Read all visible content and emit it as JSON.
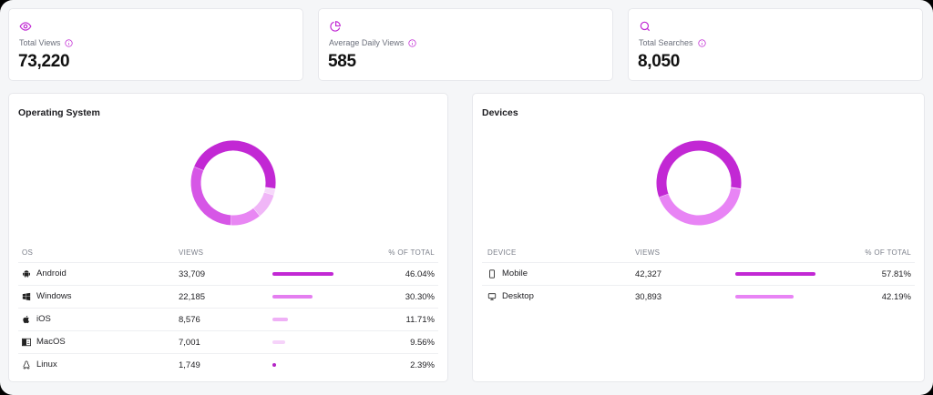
{
  "colors": {
    "accent": "#c026d3",
    "shade1": "#c228d4",
    "shade2": "#e47ef0",
    "shade3": "#efb0f6",
    "shade4": "#f6d3fa",
    "linux": "#b424c6",
    "desktop": "#e884f5"
  },
  "stats": [
    {
      "icon": "eye-icon",
      "label": "Total Views",
      "value": "73,220"
    },
    {
      "icon": "pie-chart-icon",
      "label": "Average Daily Views",
      "value": "585"
    },
    {
      "icon": "search-icon",
      "label": "Total Searches",
      "value": "8,050"
    }
  ],
  "os_panel": {
    "title": "Operating System",
    "headers": {
      "name": "OS",
      "views": "VIEWS",
      "pct": "% OF TOTAL"
    },
    "rows": [
      {
        "icon": "android-icon",
        "name": "Android",
        "views": "33,709",
        "pct": "46.04%",
        "share": 46.04,
        "color": "#c228d4"
      },
      {
        "icon": "windows-icon",
        "name": "Windows",
        "views": "22,185",
        "pct": "30.30%",
        "share": 30.3,
        "color": "#e47ef0"
      },
      {
        "icon": "apple-icon",
        "name": "iOS",
        "views": "8,576",
        "pct": "11.71%",
        "share": 11.71,
        "color": "#efb0f6"
      },
      {
        "icon": "finder-icon",
        "name": "MacOS",
        "views": "7,001",
        "pct": "9.56%",
        "share": 9.56,
        "color": "#f6d3fa"
      },
      {
        "icon": "linux-icon",
        "name": "Linux",
        "views": "1,749",
        "pct": "2.39%",
        "share": 2.39,
        "color": "#b424c6"
      }
    ],
    "donut_colors": [
      "#c228d4",
      "#d656e6",
      "#e886f3",
      "#f0b6f7",
      "#f6d8fa"
    ]
  },
  "device_panel": {
    "title": "Devices",
    "headers": {
      "name": "DEVICE",
      "views": "VIEWS",
      "pct": "% OF TOTAL"
    },
    "rows": [
      {
        "icon": "mobile-icon",
        "name": "Mobile",
        "views": "42,327",
        "pct": "57.81%",
        "share": 57.81,
        "color": "#c228d4"
      },
      {
        "icon": "desktop-icon",
        "name": "Desktop",
        "views": "30,893",
        "pct": "42.19%",
        "share": 42.19,
        "color": "#e884f5"
      }
    ],
    "donut_colors": [
      "#c228d4",
      "#e884f5"
    ]
  }
}
